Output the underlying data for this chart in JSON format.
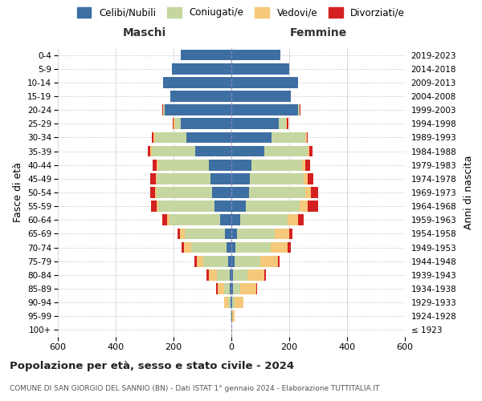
{
  "age_groups": [
    "100+",
    "95-99",
    "90-94",
    "85-89",
    "80-84",
    "75-79",
    "70-74",
    "65-69",
    "60-64",
    "55-59",
    "50-54",
    "45-49",
    "40-44",
    "35-39",
    "30-34",
    "25-29",
    "20-24",
    "15-19",
    "10-14",
    "5-9",
    "0-4"
  ],
  "birth_years": [
    "≤ 1923",
    "1924-1928",
    "1929-1933",
    "1934-1938",
    "1939-1943",
    "1944-1948",
    "1949-1953",
    "1954-1958",
    "1959-1963",
    "1964-1968",
    "1969-1973",
    "1974-1978",
    "1979-1983",
    "1984-1988",
    "1989-1993",
    "1994-1998",
    "1999-2003",
    "2004-2008",
    "2009-2013",
    "2014-2018",
    "2019-2023"
  ],
  "colors": {
    "celibi": "#3e6fa3",
    "coniugati": "#c5d6a0",
    "vedovi": "#f5c87a",
    "divorziati": "#d42020"
  },
  "maschi": {
    "celibi": [
      1,
      1,
      2,
      5,
      6,
      12,
      18,
      22,
      38,
      58,
      68,
      72,
      78,
      125,
      155,
      175,
      230,
      210,
      235,
      205,
      175
    ],
    "coniugati": [
      0,
      1,
      8,
      20,
      45,
      85,
      120,
      140,
      175,
      195,
      190,
      185,
      175,
      150,
      110,
      20,
      5,
      0,
      0,
      0,
      0
    ],
    "vedovi": [
      0,
      2,
      15,
      22,
      28,
      22,
      25,
      15,
      10,
      5,
      5,
      5,
      5,
      5,
      5,
      5,
      2,
      0,
      0,
      0,
      0
    ],
    "divorziati": [
      0,
      0,
      0,
      5,
      8,
      8,
      10,
      8,
      15,
      20,
      18,
      18,
      15,
      10,
      5,
      3,
      2,
      0,
      0,
      0,
      0
    ]
  },
  "femmine": {
    "celibi": [
      1,
      2,
      3,
      5,
      5,
      10,
      15,
      20,
      30,
      50,
      60,
      65,
      70,
      115,
      140,
      165,
      230,
      205,
      230,
      200,
      170
    ],
    "coniugati": [
      0,
      2,
      8,
      25,
      50,
      90,
      120,
      130,
      165,
      185,
      195,
      185,
      175,
      150,
      115,
      25,
      5,
      0,
      0,
      0,
      0
    ],
    "vedovi": [
      2,
      8,
      30,
      55,
      60,
      60,
      60,
      50,
      35,
      30,
      20,
      15,
      10,
      5,
      5,
      3,
      2,
      0,
      0,
      0,
      0
    ],
    "divorziati": [
      0,
      0,
      0,
      5,
      5,
      8,
      10,
      10,
      20,
      35,
      25,
      18,
      18,
      10,
      5,
      3,
      2,
      0,
      0,
      0,
      0
    ]
  },
  "xlim": 600,
  "title": "Popolazione per età, sesso e stato civile - 2024",
  "subtitle": "COMUNE DI SAN GIORGIO DEL SANNIO (BN) - Dati ISTAT 1° gennaio 2024 - Elaborazione TUTTITALIA.IT",
  "ylabel_left": "Fasce di età",
  "ylabel_right": "Anni di nascita",
  "legend_labels": [
    "Celibi/Nubili",
    "Coniugati/e",
    "Vedovi/e",
    "Divorziati/e"
  ],
  "maschi_label": "Maschi",
  "femmine_label": "Femmine",
  "bg_color": "#ffffff",
  "grid_color": "#cccccc"
}
